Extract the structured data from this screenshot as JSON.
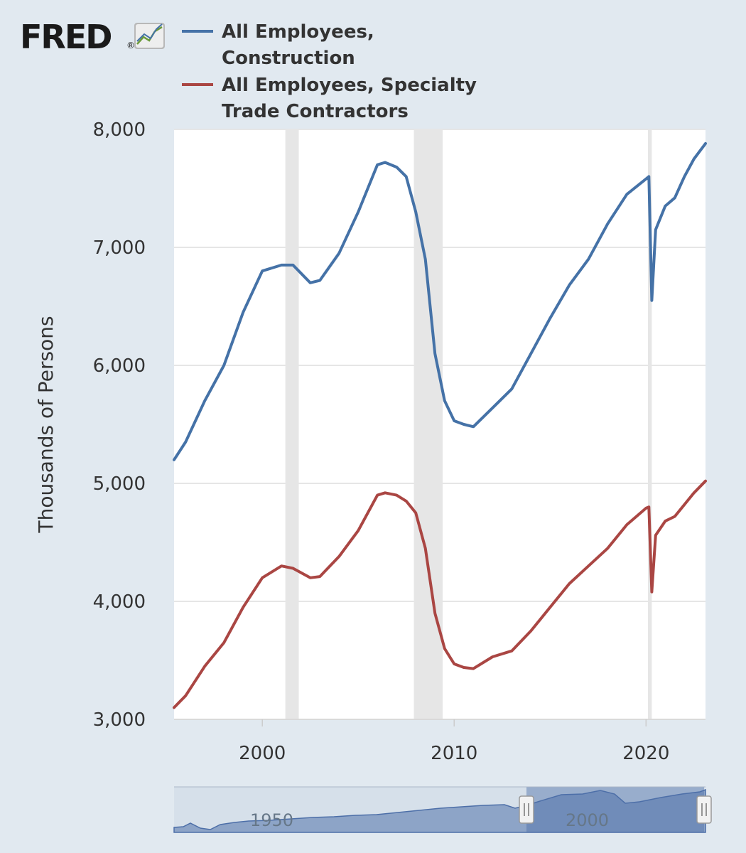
{
  "brand": {
    "name": "FRED",
    "registered": "®"
  },
  "legend": [
    {
      "lines": [
        "All Employees,",
        "Construction"
      ],
      "color": "#4572a7"
    },
    {
      "lines": [
        "All Employees, Specialty",
        "Trade Contractors"
      ],
      "color": "#aa4643"
    }
  ],
  "chart_data": {
    "type": "line",
    "ylabel": "Thousands of Persons",
    "xlim": [
      1995.4,
      2023.1
    ],
    "ylim": [
      3000,
      8000
    ],
    "y_ticks": [
      3000,
      4000,
      5000,
      6000,
      7000,
      8000
    ],
    "y_tick_labels": [
      "3,000",
      "4,000",
      "5,000",
      "6,000",
      "7,000",
      "8,000"
    ],
    "x_ticks": [
      2000,
      2010,
      2020
    ],
    "x_tick_labels": [
      "2000",
      "2010",
      "2020"
    ],
    "grid": true,
    "recessions": [
      [
        2001.2,
        2001.9
      ],
      [
        2007.9,
        2009.4
      ],
      [
        2020.1,
        2020.3
      ]
    ],
    "series": [
      {
        "name": "All Employees, Construction",
        "color": "#4572a7",
        "x": [
          1995.4,
          1996.0,
          1997.0,
          1998.0,
          1999.0,
          2000.0,
          2001.0,
          2001.6,
          2002.5,
          2003.0,
          2004.0,
          2005.0,
          2006.0,
          2006.4,
          2007.0,
          2007.5,
          2008.0,
          2008.5,
          2009.0,
          2009.5,
          2010.0,
          2010.5,
          2011.0,
          2012.0,
          2013.0,
          2014.0,
          2015.0,
          2016.0,
          2017.0,
          2018.0,
          2019.0,
          2020.0,
          2020.15,
          2020.3,
          2020.5,
          2021.0,
          2021.5,
          2022.0,
          2022.5,
          2023.1
        ],
        "values": [
          5200,
          5350,
          5700,
          6000,
          6450,
          6800,
          6850,
          6850,
          6700,
          6720,
          6950,
          7300,
          7700,
          7720,
          7680,
          7600,
          7300,
          6900,
          6100,
          5700,
          5530,
          5500,
          5480,
          5640,
          5800,
          6100,
          6400,
          6680,
          6900,
          7200,
          7450,
          7580,
          7600,
          6550,
          7150,
          7350,
          7420,
          7600,
          7750,
          7880
        ]
      },
      {
        "name": "All Employees, Specialty Trade Contractors",
        "color": "#aa4643",
        "x": [
          1995.4,
          1996.0,
          1997.0,
          1998.0,
          1999.0,
          2000.0,
          2001.0,
          2001.6,
          2002.5,
          2003.0,
          2004.0,
          2005.0,
          2006.0,
          2006.4,
          2007.0,
          2007.5,
          2008.0,
          2008.5,
          2009.0,
          2009.5,
          2010.0,
          2010.5,
          2011.0,
          2012.0,
          2013.0,
          2014.0,
          2015.0,
          2016.0,
          2017.0,
          2018.0,
          2019.0,
          2020.0,
          2020.15,
          2020.3,
          2020.5,
          2021.0,
          2021.5,
          2022.0,
          2022.5,
          2023.1
        ],
        "values": [
          3100,
          3200,
          3450,
          3650,
          3950,
          4200,
          4300,
          4280,
          4200,
          4210,
          4380,
          4600,
          4900,
          4920,
          4900,
          4850,
          4750,
          4450,
          3900,
          3600,
          3470,
          3440,
          3430,
          3530,
          3580,
          3750,
          3950,
          4150,
          4300,
          4450,
          4650,
          4790,
          4800,
          4080,
          4560,
          4680,
          4720,
          4820,
          4920,
          5020
        ]
      }
    ],
    "navigator": {
      "x_tick_labels": [
        "1950",
        "2000"
      ],
      "selected_range": [
        1995.4,
        2023.1
      ]
    }
  }
}
